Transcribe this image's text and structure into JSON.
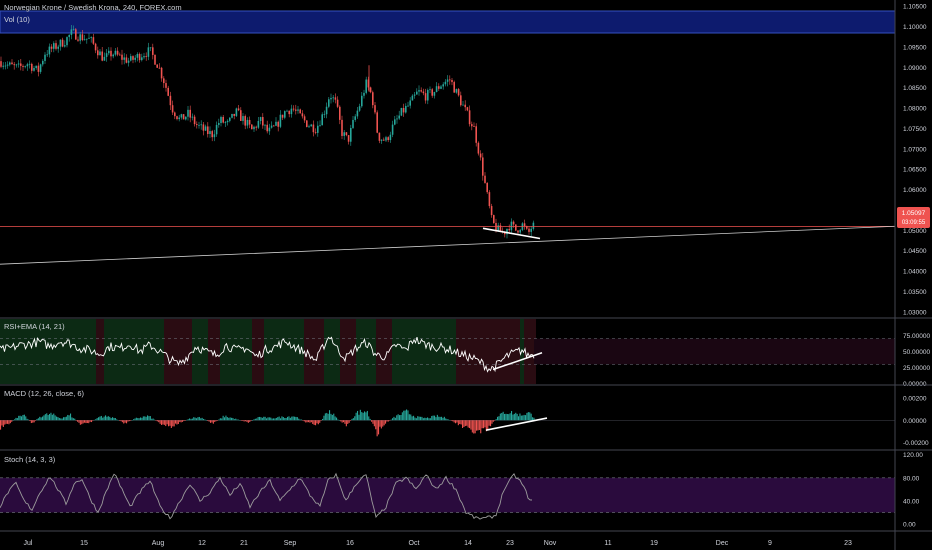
{
  "header": {
    "symbol_title": "Norwegian Krone / Swedish Krona, 240, FOREX.com",
    "volume_label": "Vol (10)"
  },
  "price_tag": {
    "price": "1.05097",
    "countdown": "03:09:55"
  },
  "colors": {
    "background": "#000000",
    "up": "#26a69a",
    "down": "#ef5350",
    "volume_band": "#0d1b6e",
    "rsi_line": "#ffffff",
    "stoch_k": "#9c9c9c",
    "stoch_band": "#2a0b3d",
    "price_tag": "#ef5350"
  },
  "chart_data": [
    {
      "type": "candlestick",
      "title": "Norwegian Krone / Swedish Krona, 240, FOREX.com",
      "ylim": [
        1.0285,
        1.1065
      ],
      "y_ticks": [
        "1.10500",
        "1.10000",
        "1.09500",
        "1.09000",
        "1.08500",
        "1.08000",
        "1.07500",
        "1.07000",
        "1.06500",
        "1.06000",
        "1.05500",
        "1.05000",
        "1.04500",
        "1.04000",
        "1.03500",
        "1.03000"
      ],
      "y_tick_values": [
        1.105,
        1.1,
        1.095,
        1.09,
        1.085,
        1.08,
        1.075,
        1.07,
        1.065,
        1.06,
        1.055,
        1.05,
        1.045,
        1.04,
        1.035,
        1.03
      ],
      "x_ticks": [
        "Jul",
        "15",
        "Aug",
        "12",
        "21",
        "Sep",
        "16",
        "Oct",
        "14",
        "23",
        "Nov",
        "11",
        "19",
        "Dec",
        "9",
        "23"
      ],
      "price_path": [
        [
          0,
          1.0915
        ],
        [
          8,
          1.0905
        ],
        [
          18,
          1.0898
        ],
        [
          28,
          1.091
        ],
        [
          38,
          1.089
        ],
        [
          45,
          1.0935
        ],
        [
          55,
          1.095
        ],
        [
          65,
          1.0965
        ],
        [
          72,
          1.0985
        ],
        [
          80,
          1.0975
        ],
        [
          90,
          1.0968
        ],
        [
          98,
          1.094
        ],
        [
          104,
          1.092
        ],
        [
          112,
          1.0935
        ],
        [
          120,
          1.0925
        ],
        [
          130,
          1.0915
        ],
        [
          140,
          1.093
        ],
        [
          150,
          1.094
        ],
        [
          158,
          1.0905
        ],
        [
          165,
          1.086
        ],
        [
          172,
          1.08
        ],
        [
          180,
          1.077
        ],
        [
          188,
          1.0785
        ],
        [
          196,
          1.076
        ],
        [
          204,
          1.0745
        ],
        [
          212,
          1.0735
        ],
        [
          220,
          1.077
        ],
        [
          228,
          1.076
        ],
        [
          236,
          1.079
        ],
        [
          244,
          1.077
        ],
        [
          252,
          1.0745
        ],
        [
          260,
          1.077
        ],
        [
          268,
          1.074
        ],
        [
          276,
          1.0755
        ],
        [
          284,
          1.079
        ],
        [
          292,
          1.08
        ],
        [
          300,
          1.078
        ],
        [
          308,
          1.076
        ],
        [
          316,
          1.075
        ],
        [
          324,
          1.079
        ],
        [
          330,
          1.0835
        ],
        [
          336,
          1.081
        ],
        [
          342,
          1.074
        ],
        [
          348,
          1.072
        ],
        [
          354,
          1.077
        ],
        [
          360,
          1.081
        ],
        [
          366,
          1.086
        ],
        [
          372,
          1.083
        ],
        [
          378,
          1.073
        ],
        [
          386,
          1.072
        ],
        [
          394,
          1.076
        ],
        [
          402,
          1.079
        ],
        [
          410,
          1.081
        ],
        [
          418,
          1.084
        ],
        [
          426,
          1.083
        ],
        [
          434,
          1.084
        ],
        [
          442,
          1.086
        ],
        [
          450,
          1.087
        ],
        [
          458,
          1.083
        ],
        [
          466,
          1.079
        ],
        [
          474,
          1.075
        ],
        [
          480,
          1.068
        ],
        [
          486,
          1.06
        ],
        [
          492,
          1.052
        ],
        [
          498,
          1.05
        ],
        [
          504,
          1.0495
        ],
        [
          510,
          1.0515
        ],
        [
          516,
          1.05
        ],
        [
          522,
          1.0515
        ],
        [
          528,
          1.049
        ],
        [
          532,
          1.051
        ]
      ],
      "current_price": 1.05097,
      "trendline_long": {
        "from": [
          0,
          1.0417
        ],
        "to": [
          895,
          1.051
        ]
      },
      "trendline_short": {
        "from": [
          483,
          1.0505
        ],
        "to": [
          540,
          1.048
        ]
      }
    },
    {
      "type": "line",
      "title": "RSI+EMA (14, 21)",
      "ylim": [
        -2,
        102
      ],
      "y_ticks": [
        "75.00000",
        "50.00000",
        "25.00000",
        "0.00000"
      ],
      "y_tick_values": [
        75,
        50,
        25,
        0
      ],
      "upper_band": 70,
      "lower_band": 30,
      "rsi_path": [
        [
          0,
          52
        ],
        [
          10,
          55
        ],
        [
          20,
          60
        ],
        [
          30,
          62
        ],
        [
          40,
          65
        ],
        [
          50,
          58
        ],
        [
          60,
          66
        ],
        [
          70,
          63
        ],
        [
          80,
          55
        ],
        [
          90,
          52
        ],
        [
          100,
          46
        ],
        [
          110,
          58
        ],
        [
          120,
          55
        ],
        [
          130,
          62
        ],
        [
          140,
          50
        ],
        [
          150,
          60
        ],
        [
          160,
          50
        ],
        [
          170,
          38
        ],
        [
          178,
          30
        ],
        [
          186,
          40
        ],
        [
          196,
          58
        ],
        [
          206,
          50
        ],
        [
          216,
          44
        ],
        [
          226,
          60
        ],
        [
          236,
          52
        ],
        [
          246,
          56
        ],
        [
          256,
          42
        ],
        [
          266,
          53
        ],
        [
          276,
          58
        ],
        [
          286,
          66
        ],
        [
          296,
          56
        ],
        [
          306,
          48
        ],
        [
          316,
          36
        ],
        [
          324,
          60
        ],
        [
          330,
          75
        ],
        [
          338,
          52
        ],
        [
          346,
          40
        ],
        [
          356,
          55
        ],
        [
          366,
          64
        ],
        [
          376,
          45
        ],
        [
          386,
          42
        ],
        [
          396,
          60
        ],
        [
          406,
          52
        ],
        [
          414,
          70
        ],
        [
          422,
          63
        ],
        [
          432,
          58
        ],
        [
          442,
          56
        ],
        [
          452,
          52
        ],
        [
          462,
          45
        ],
        [
          472,
          40
        ],
        [
          482,
          32
        ],
        [
          490,
          22
        ],
        [
          498,
          30
        ],
        [
          506,
          42
        ],
        [
          514,
          48
        ],
        [
          522,
          52
        ],
        [
          528,
          44
        ],
        [
          534,
          46
        ]
      ],
      "trendline": {
        "from": [
          493,
          22
        ],
        "to": [
          542,
          48
        ]
      }
    },
    {
      "type": "bar",
      "title": "MACD (12, 26, close, 6)",
      "ylim": [
        -0.0027,
        0.0032
      ],
      "y_ticks": [
        "0.00200",
        "0.00000",
        "-0.00200"
      ],
      "y_tick_values": [
        0.002,
        0,
        -0.002
      ],
      "histogram_path": [
        [
          0,
          -0.0008
        ],
        [
          8,
          -0.0004
        ],
        [
          16,
          0.0003
        ],
        [
          24,
          0.0004
        ],
        [
          32,
          -0.0003
        ],
        [
          40,
          0.0004
        ],
        [
          50,
          0.0006
        ],
        [
          60,
          0.0002
        ],
        [
          70,
          0.0005
        ],
        [
          80,
          -0.0004
        ],
        [
          90,
          -0.0002
        ],
        [
          100,
          0.0004
        ],
        [
          112,
          0.0003
        ],
        [
          124,
          -0.0003
        ],
        [
          136,
          0.0002
        ],
        [
          148,
          0.0004
        ],
        [
          160,
          -0.0003
        ],
        [
          170,
          -0.0006
        ],
        [
          180,
          -0.0002
        ],
        [
          190,
          0.0002
        ],
        [
          200,
          0.0003
        ],
        [
          212,
          -0.0003
        ],
        [
          224,
          0.0004
        ],
        [
          236,
          0.0001
        ],
        [
          248,
          -0.0002
        ],
        [
          258,
          0.0003
        ],
        [
          270,
          0.0002
        ],
        [
          282,
          0.0003
        ],
        [
          294,
          0.0004
        ],
        [
          306,
          -0.0002
        ],
        [
          318,
          -0.0004
        ],
        [
          328,
          0.001
        ],
        [
          336,
          0.0002
        ],
        [
          346,
          -0.0005
        ],
        [
          356,
          0.0007
        ],
        [
          366,
          0.0009
        ],
        [
          376,
          -0.0012
        ],
        [
          386,
          -0.0002
        ],
        [
          396,
          0.0004
        ],
        [
          406,
          0.0008
        ],
        [
          416,
          0.0003
        ],
        [
          426,
          0.0002
        ],
        [
          436,
          0.0004
        ],
        [
          446,
          0.0002
        ],
        [
          456,
          -0.0003
        ],
        [
          466,
          -0.0008
        ],
        [
          476,
          -0.0012
        ],
        [
          486,
          -0.001
        ],
        [
          496,
          0.0002
        ],
        [
          504,
          0.0008
        ],
        [
          512,
          0.0007
        ],
        [
          520,
          0.0005
        ],
        [
          528,
          0.0007
        ],
        [
          534,
          0.0003
        ]
      ],
      "trendline": {
        "from": [
          486,
          -0.0009
        ],
        "to": [
          547,
          0.0002
        ]
      }
    },
    {
      "type": "line",
      "title": "Stoch (14, 3, 3)",
      "ylim": [
        -12,
        128
      ],
      "y_ticks": [
        "120.00",
        "80.00",
        "40.00",
        "0.00"
      ],
      "y_tick_values": [
        120,
        80,
        40,
        0
      ],
      "upper_band": 80,
      "lower_band": 20,
      "k_path": [
        [
          0,
          30
        ],
        [
          8,
          55
        ],
        [
          16,
          70
        ],
        [
          24,
          40
        ],
        [
          32,
          25
        ],
        [
          40,
          55
        ],
        [
          50,
          82
        ],
        [
          58,
          60
        ],
        [
          66,
          35
        ],
        [
          74,
          70
        ],
        [
          82,
          78
        ],
        [
          90,
          45
        ],
        [
          98,
          20
        ],
        [
          106,
          55
        ],
        [
          114,
          88
        ],
        [
          122,
          60
        ],
        [
          130,
          30
        ],
        [
          140,
          55
        ],
        [
          150,
          75
        ],
        [
          160,
          30
        ],
        [
          170,
          10
        ],
        [
          180,
          40
        ],
        [
          190,
          70
        ],
        [
          200,
          40
        ],
        [
          210,
          55
        ],
        [
          220,
          80
        ],
        [
          230,
          50
        ],
        [
          240,
          70
        ],
        [
          250,
          30
        ],
        [
          260,
          55
        ],
        [
          270,
          75
        ],
        [
          280,
          40
        ],
        [
          290,
          60
        ],
        [
          300,
          80
        ],
        [
          310,
          50
        ],
        [
          320,
          30
        ],
        [
          328,
          75
        ],
        [
          336,
          85
        ],
        [
          346,
          40
        ],
        [
          356,
          70
        ],
        [
          366,
          85
        ],
        [
          376,
          10
        ],
        [
          386,
          30
        ],
        [
          396,
          70
        ],
        [
          406,
          80
        ],
        [
          416,
          60
        ],
        [
          426,
          85
        ],
        [
          436,
          60
        ],
        [
          446,
          80
        ],
        [
          456,
          60
        ],
        [
          466,
          20
        ],
        [
          476,
          10
        ],
        [
          486,
          10
        ],
        [
          496,
          15
        ],
        [
          504,
          60
        ],
        [
          514,
          85
        ],
        [
          522,
          70
        ],
        [
          530,
          40
        ]
      ]
    }
  ]
}
